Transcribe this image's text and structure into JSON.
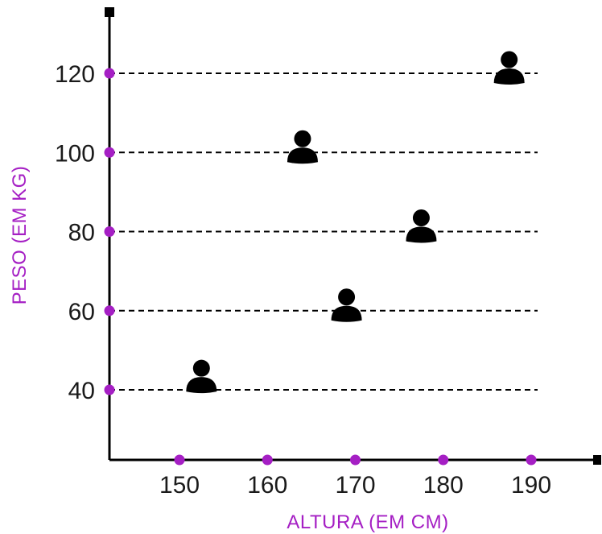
{
  "chart_data": {
    "type": "scatter",
    "title": "",
    "xlabel": "ALTURA (EM CM)",
    "ylabel": "PESO (EM KG)",
    "x_ticks": [
      150,
      160,
      170,
      180,
      190
    ],
    "y_ticks": [
      40,
      60,
      80,
      100,
      120
    ],
    "xlim": [
      142,
      198
    ],
    "ylim": [
      24,
      135
    ],
    "grid": "horizontal dashed lines",
    "marker": "person-icon",
    "points": [
      {
        "x": 152.5,
        "y": 42
      },
      {
        "x": 169,
        "y": 60
      },
      {
        "x": 177.5,
        "y": 80
      },
      {
        "x": 164,
        "y": 100
      },
      {
        "x": 187.5,
        "y": 120
      }
    ]
  },
  "colors": {
    "accent": "#a51fc4",
    "axis": "#000000",
    "marker": "#000000"
  }
}
